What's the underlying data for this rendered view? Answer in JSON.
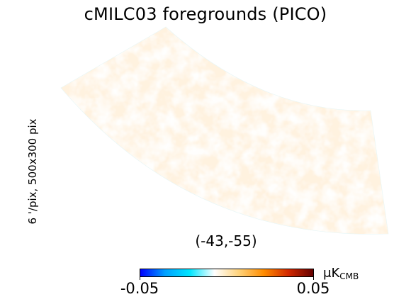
{
  "title": "cMILC03 foregrounds (PICO)",
  "side_label": "6 '/pix,   500x300 pix",
  "coordinate_label": "(-43,-55)",
  "colorbar": {
    "min_label": "-0.05",
    "max_label": "0.05",
    "min": -0.05,
    "max": 0.05,
    "unit_prefix": "μK",
    "unit_sub": "CMB",
    "colors": [
      "#0000ff",
      "#00a0ff",
      "#00e6ff",
      "#ffffff",
      "#ffd27a",
      "#ff8c00",
      "#d22800",
      "#640000"
    ]
  },
  "map": {
    "colormap_name": "planck",
    "palette": {
      "cyan": "#9ee6ee",
      "light_cyan": "#cdf1f3",
      "cream": "#fff2df",
      "light_orange": "#ffe1b0",
      "orange": "#ffd494"
    }
  }
}
